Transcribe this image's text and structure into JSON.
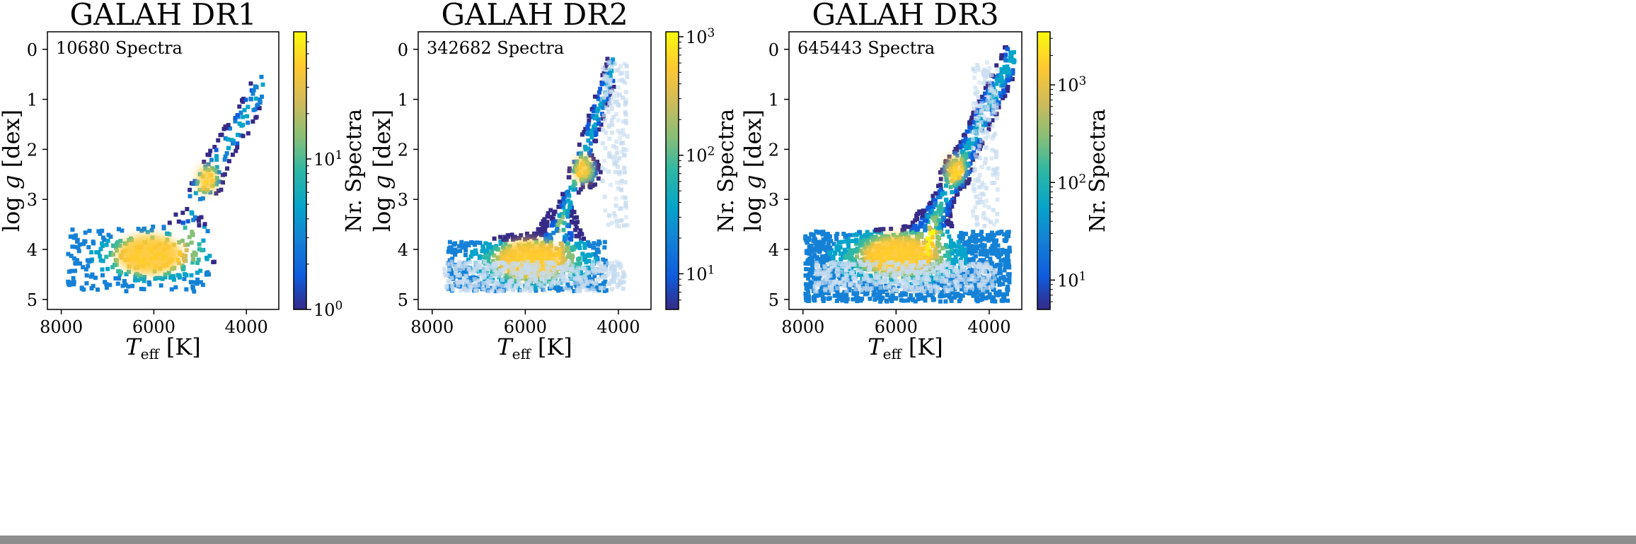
{
  "figure": {
    "y_axis_label": "log g [dex]",
    "x_axis_label": "T_eff [K]",
    "colorbar_label": "Nr. Spectra"
  },
  "chart_data": [
    {
      "type": "heatmap",
      "title": "GALAH DR1",
      "annotation": "10680 Spectra",
      "xlabel": "T_eff [K]",
      "ylabel": "log g [dex]",
      "xlim": [
        8300,
        3300
      ],
      "ylim": [
        -0.35,
        5.2
      ],
      "x_ticks": [
        8000,
        6000,
        4000
      ],
      "y_ticks": [
        0,
        1,
        2,
        3,
        4,
        5
      ],
      "colorbar": {
        "label": "Nr. Spectra",
        "scale": "log",
        "range": [
          1,
          70
        ],
        "ticks": [
          1,
          10
        ],
        "tick_labels": [
          "10^0",
          "10^1"
        ]
      },
      "colormap": "parula-like",
      "distribution": {
        "main_sequence": {
          "teff_range": [
            7900,
            4800
          ],
          "logg_range": [
            3.5,
            4.8
          ],
          "peak": [
            6100,
            4.1
          ]
        },
        "red_clump": {
          "teff": 4850,
          "logg": 2.6
        },
        "giant_branch": {
          "teff_range": [
            5200,
            3750
          ],
          "logg_range": [
            3.0,
            0.8
          ]
        }
      }
    },
    {
      "type": "heatmap",
      "title": "GALAH DR2",
      "annotation": "342682 Spectra",
      "xlabel": "T_eff [K]",
      "ylabel": "log g [dex]",
      "xlim": [
        8300,
        3300
      ],
      "ylim": [
        -0.35,
        5.2
      ],
      "x_ticks": [
        8000,
        6000,
        4000
      ],
      "y_ticks": [
        0,
        1,
        2,
        3,
        4,
        5
      ],
      "colorbar": {
        "label": "Nr. Spectra",
        "scale": "log",
        "range": [
          5,
          1100
        ],
        "ticks": [
          10,
          100,
          1000
        ],
        "tick_labels": [
          "10^1",
          "10^2",
          "10^3"
        ]
      },
      "colormap": "parula-like",
      "distribution": {
        "main_sequence": {
          "teff_range": [
            7700,
            4300
          ],
          "logg_range": [
            3.8,
            4.8
          ],
          "peak": [
            5900,
            4.2
          ]
        },
        "red_clump": {
          "teff": 4750,
          "logg": 2.4
        },
        "giant_branch": {
          "teff_range": [
            5300,
            4200
          ],
          "logg_range": [
            3.5,
            0.4
          ]
        },
        "flagged_overlay": "light blue, low-density"
      }
    },
    {
      "type": "heatmap",
      "title": "GALAH DR3",
      "annotation": "645443 Spectra",
      "xlabel": "T_eff [K]",
      "ylabel": "log g [dex]",
      "xlim": [
        8300,
        3300
      ],
      "ylim": [
        -0.35,
        5.2
      ],
      "x_ticks": [
        8000,
        6000,
        4000
      ],
      "y_ticks": [
        0,
        1,
        2,
        3,
        4,
        5
      ],
      "colorbar": {
        "label": "Nr. Spectra",
        "scale": "log",
        "range": [
          5,
          3500
        ],
        "ticks": [
          10,
          100,
          1000
        ],
        "tick_labels": [
          "10^1",
          "10^2",
          "10^3"
        ]
      },
      "colormap": "parula-like",
      "distribution": {
        "main_sequence": {
          "teff_range": [
            8000,
            3600
          ],
          "logg_range": [
            3.6,
            5.0
          ],
          "peak": [
            6000,
            4.1
          ]
        },
        "red_clump": {
          "teff": 4750,
          "logg": 2.4
        },
        "giant_branch": {
          "teff_range": [
            5300,
            3500
          ],
          "logg_range": [
            3.5,
            0.0
          ]
        },
        "flagged_overlay": "light blue, low-density"
      }
    }
  ],
  "colors": {
    "cmap": [
      "#352a87",
      "#0f5cdd",
      "#1481d6",
      "#06a4ca",
      "#2eb7a4",
      "#87bf77",
      "#d1bb59",
      "#fec832",
      "#f9fb0e"
    ],
    "flagged": "#c6dbef",
    "frame": "#000000",
    "bottom_bar": "#8e8e8e"
  }
}
